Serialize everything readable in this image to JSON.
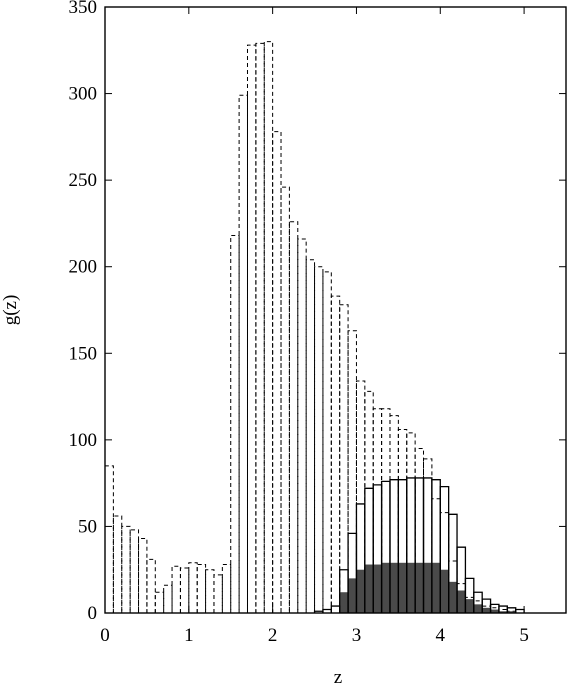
{
  "chart_data": {
    "type": "bar",
    "xlabel": "z",
    "ylabel": "g(z)",
    "xlim": [
      0,
      5.5
    ],
    "ylim": [
      0,
      350
    ],
    "x_ticks": [
      "0",
      "1",
      "2",
      "3",
      "4",
      "5"
    ],
    "y_ticks": [
      "0",
      "50",
      "100",
      "150",
      "200",
      "250",
      "300",
      "350"
    ],
    "bin_width": 0.1,
    "bin_starts": [
      0.0,
      0.1,
      0.2,
      0.3,
      0.4,
      0.5,
      0.6,
      0.7,
      0.8,
      0.9,
      1.0,
      1.1,
      1.2,
      1.3,
      1.4,
      1.5,
      1.6,
      1.7,
      1.8,
      1.9,
      2.0,
      2.1,
      2.2,
      2.3,
      2.4,
      2.5,
      2.6,
      2.7,
      2.8,
      2.9,
      3.0,
      3.1,
      3.2,
      3.3,
      3.4,
      3.5,
      3.6,
      3.7,
      3.8,
      3.9,
      4.0,
      4.1,
      4.2,
      4.3,
      4.4,
      4.5,
      4.6,
      4.7,
      4.8,
      4.9,
      5.0
    ],
    "series": [
      {
        "style": "dashed-outline",
        "values": [
          85,
          56,
          50,
          48,
          43,
          31,
          12,
          16,
          27,
          26,
          29,
          28,
          25,
          22,
          28,
          218,
          299,
          328,
          329,
          330,
          278,
          246,
          226,
          216,
          204,
          200,
          197,
          183,
          178,
          163,
          134,
          128,
          118,
          118,
          114,
          106,
          104,
          95,
          89,
          66,
          58,
          30,
          17,
          9,
          7,
          4,
          3,
          2,
          1,
          0,
          0
        ]
      },
      {
        "style": "solid-outline",
        "values": [
          0,
          0,
          0,
          0,
          0,
          0,
          0,
          0,
          0,
          0,
          0,
          0,
          0,
          0,
          0,
          0,
          0,
          0,
          0,
          0,
          0,
          0,
          0,
          0,
          0,
          1,
          2,
          4,
          25,
          46,
          63,
          72,
          74,
          76,
          77,
          77,
          78,
          78,
          78,
          77,
          73,
          57,
          38,
          20,
          12,
          8,
          5,
          4,
          3,
          2,
          0
        ]
      },
      {
        "style": "filled",
        "color": "#4a4a4a",
        "values": [
          0,
          0,
          0,
          0,
          0,
          0,
          0,
          0,
          0,
          0,
          0,
          0,
          0,
          0,
          0,
          0,
          0,
          0,
          0,
          0,
          0,
          0,
          0,
          0,
          0,
          0,
          0,
          0,
          12,
          20,
          25,
          28,
          28,
          29,
          29,
          29,
          29,
          29,
          29,
          29,
          25,
          18,
          13,
          8,
          5,
          3,
          2,
          1,
          1,
          0,
          0
        ]
      }
    ]
  }
}
